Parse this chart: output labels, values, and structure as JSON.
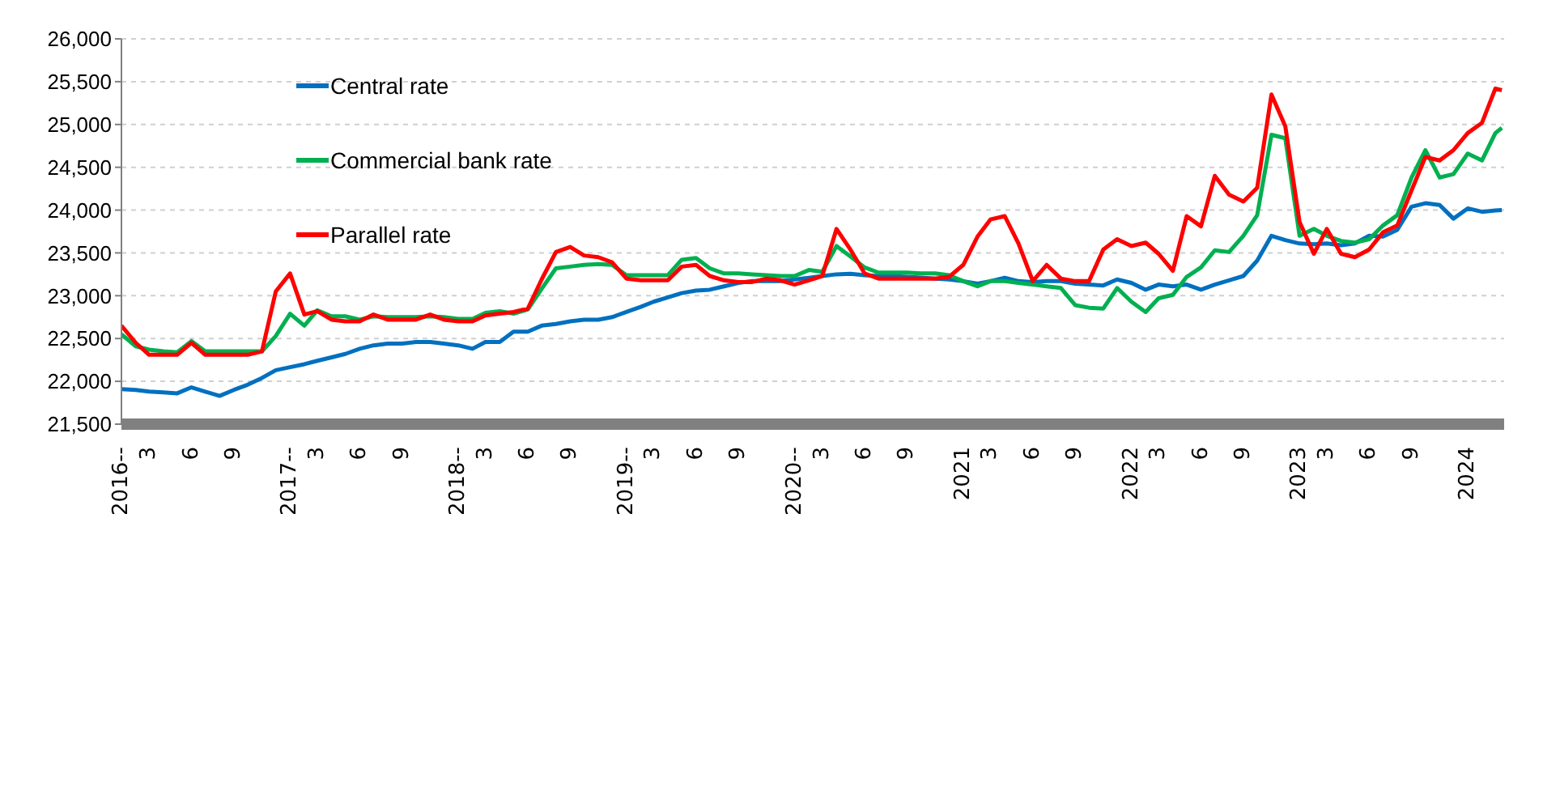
{
  "chart_data": {
    "type": "line",
    "x": [
      "2016-01-01",
      "2016-02-01",
      "2016-03-01",
      "2016-04-01",
      "2016-05-01",
      "2016-06-01",
      "2016-07-01",
      "2016-08-01",
      "2016-09-01",
      "2016-10-01",
      "2016-11-01",
      "2016-12-01",
      "2017-01-01",
      "2017-02-01",
      "2017-03-01",
      "2017-04-01",
      "2017-05-01",
      "2017-06-01",
      "2017-07-01",
      "2017-08-01",
      "2017-09-01",
      "2017-10-01",
      "2017-11-01",
      "2017-12-01",
      "2018-01-01",
      "2018-02-01",
      "2018-03-01",
      "2018-04-01",
      "2018-05-01",
      "2018-06-01",
      "2018-07-01",
      "2018-08-01",
      "2018-09-01",
      "2018-10-01",
      "2018-11-01",
      "2018-12-01",
      "2019-01-01",
      "2019-02-01",
      "2019-03-01",
      "2019-04-01",
      "2019-05-01",
      "2019-06-01",
      "2019-07-01",
      "2019-08-01",
      "2019-09-01",
      "2019-10-01",
      "2019-11-01",
      "2019-12-01",
      "2020-01-01",
      "2020-02-01",
      "2020-03-01",
      "2020-04-01",
      "2020-05-01",
      "2020-06-01",
      "2020-07-01",
      "2020-08-01",
      "2020-09-01",
      "2020-10-01",
      "2020-11-01",
      "2020-12-01",
      "2021-01-01",
      "2021-02-01",
      "2021-03-01",
      "2021-04-01",
      "2021-05-01",
      "2021-06-01",
      "2021-07-01",
      "2021-08-01",
      "2021-09-01",
      "2021-10-01",
      "2021-11-01",
      "2021-12-01",
      "2022-01-01",
      "2022-02-01",
      "2022-03-01",
      "2022-04-01",
      "2022-05-01",
      "2022-06-01",
      "2022-07-01",
      "2022-08-01",
      "2022-09-01",
      "2022-10-01",
      "2022-11-01",
      "2022-12-01",
      "2023-01-01",
      "2023-02-01",
      "2023-03-01",
      "2023-04-01",
      "2023-05-01",
      "2023-06-01",
      "2023-07-01",
      "2023-08-01",
      "2023-09-01",
      "2023-10-01",
      "2023-11-01",
      "2023-12-01",
      "2024-01-01",
      "2024-02-01",
      "2024-03-01",
      "2024-03-15"
    ],
    "series": [
      {
        "name": "Central rate",
        "color": "#0070c0",
        "values": [
          21910,
          21900,
          21880,
          21870,
          21860,
          21930,
          21880,
          21830,
          21900,
          21960,
          22040,
          22130,
          22165,
          22200,
          22240,
          22280,
          22320,
          22380,
          22420,
          22440,
          22440,
          22460,
          22460,
          22440,
          22420,
          22380,
          22460,
          22460,
          22580,
          22580,
          22650,
          22670,
          22700,
          22720,
          22720,
          22750,
          22810,
          22870,
          22930,
          22980,
          23030,
          23060,
          23070,
          23110,
          23150,
          23170,
          23170,
          23170,
          23190,
          23210,
          23230,
          23250,
          23255,
          23240,
          23230,
          23230,
          23220,
          23210,
          23200,
          23190,
          23170,
          23140,
          23170,
          23210,
          23170,
          23160,
          23170,
          23170,
          23140,
          23130,
          23120,
          23190,
          23150,
          23070,
          23130,
          23110,
          23130,
          23070,
          23130,
          23180,
          23230,
          23410,
          23700,
          23650,
          23610,
          23600,
          23610,
          23590,
          23610,
          23700,
          23690,
          23770,
          24040,
          24080,
          24060,
          23900,
          24020,
          23980,
          23995,
          24000
        ]
      },
      {
        "name": "Commercial bank rate",
        "color": "#00b050",
        "values": [
          22550,
          22410,
          22370,
          22350,
          22340,
          22470,
          22350,
          22350,
          22350,
          22350,
          22350,
          22530,
          22790,
          22650,
          22830,
          22760,
          22760,
          22720,
          22760,
          22750,
          22750,
          22750,
          22760,
          22750,
          22730,
          22730,
          22800,
          22820,
          22790,
          22840,
          23080,
          23320,
          23340,
          23360,
          23370,
          23360,
          23240,
          23240,
          23240,
          23240,
          23420,
          23440,
          23320,
          23260,
          23260,
          23250,
          23240,
          23230,
          23230,
          23300,
          23280,
          23580,
          23460,
          23330,
          23270,
          23270,
          23270,
          23260,
          23260,
          23240,
          23170,
          23110,
          23170,
          23170,
          23150,
          23130,
          23110,
          23090,
          22890,
          22860,
          22850,
          23090,
          22930,
          22810,
          22970,
          23010,
          23220,
          23330,
          23530,
          23510,
          23700,
          23940,
          24880,
          24840,
          23700,
          23780,
          23700,
          23640,
          23620,
          23660,
          23820,
          23940,
          24380,
          24700,
          24380,
          24420,
          24660,
          24580,
          24900,
          24960
        ]
      },
      {
        "name": "Parallel rate",
        "color": "#ff0000",
        "values": [
          22650,
          22450,
          22310,
          22310,
          22310,
          22450,
          22310,
          22310,
          22310,
          22310,
          22350,
          23050,
          23260,
          22780,
          22820,
          22720,
          22700,
          22700,
          22780,
          22720,
          22720,
          22720,
          22780,
          22720,
          22700,
          22700,
          22770,
          22790,
          22810,
          22850,
          23190,
          23510,
          23570,
          23470,
          23450,
          23390,
          23200,
          23180,
          23180,
          23180,
          23340,
          23360,
          23230,
          23180,
          23160,
          23160,
          23200,
          23180,
          23130,
          23180,
          23230,
          23780,
          23540,
          23260,
          23200,
          23200,
          23200,
          23200,
          23200,
          23220,
          23360,
          23690,
          23890,
          23930,
          23610,
          23170,
          23360,
          23200,
          23170,
          23170,
          23540,
          23660,
          23580,
          23620,
          23490,
          23290,
          23930,
          23810,
          24400,
          24180,
          24100,
          24260,
          25350,
          24980,
          23860,
          23490,
          23780,
          23490,
          23450,
          23540,
          23740,
          23820,
          24230,
          24620,
          24580,
          24700,
          24900,
          25020,
          25420,
          25400
        ]
      }
    ],
    "xlim": [
      "2016-01-01",
      "2024-03-20"
    ],
    "xticks": [
      {
        "value": "2016-01",
        "label": "2016--"
      },
      {
        "value": "2016-03",
        "label": "3"
      },
      {
        "value": "2016-06",
        "label": "6"
      },
      {
        "value": "2016-09",
        "label": "9"
      },
      {
        "value": "2017-01",
        "label": "2017--"
      },
      {
        "value": "2017-03",
        "label": "3"
      },
      {
        "value": "2017-06",
        "label": "6"
      },
      {
        "value": "2017-09",
        "label": "9"
      },
      {
        "value": "2018-01",
        "label": "2018--"
      },
      {
        "value": "2018-03",
        "label": "3"
      },
      {
        "value": "2018-06",
        "label": "6"
      },
      {
        "value": "2018-09",
        "label": "9"
      },
      {
        "value": "2019-01",
        "label": "2019--"
      },
      {
        "value": "2019-03",
        "label": "3"
      },
      {
        "value": "2019-06",
        "label": "6"
      },
      {
        "value": "2019-09",
        "label": "9"
      },
      {
        "value": "2020-01",
        "label": "2020--"
      },
      {
        "value": "2020-03",
        "label": "3"
      },
      {
        "value": "2020-06",
        "label": "6"
      },
      {
        "value": "2020-09",
        "label": "9"
      },
      {
        "value": "2021-01",
        "label": "2021"
      },
      {
        "value": "2021-03",
        "label": "3"
      },
      {
        "value": "2021-06",
        "label": "6"
      },
      {
        "value": "2021-09",
        "label": "9"
      },
      {
        "value": "2022-01",
        "label": "2022"
      },
      {
        "value": "2022-03",
        "label": "3"
      },
      {
        "value": "2022-06",
        "label": "6"
      },
      {
        "value": "2022-09",
        "label": "9"
      },
      {
        "value": "2023-01",
        "label": "2023"
      },
      {
        "value": "2023-03",
        "label": "3"
      },
      {
        "value": "2023-06",
        "label": "6"
      },
      {
        "value": "2023-09",
        "label": "9"
      },
      {
        "value": "2024-01",
        "label": "2024"
      }
    ],
    "ylim": [
      21500,
      26000
    ],
    "yticks": [
      {
        "value": 21500,
        "label": "21,500"
      },
      {
        "value": 22000,
        "label": "22,000"
      },
      {
        "value": 22500,
        "label": "22,500"
      },
      {
        "value": 23000,
        "label": "23,000"
      },
      {
        "value": 23500,
        "label": "23,500"
      },
      {
        "value": 24000,
        "label": "24,000"
      },
      {
        "value": 24500,
        "label": "24,500"
      },
      {
        "value": 25000,
        "label": "25,000"
      },
      {
        "value": 25500,
        "label": "25,500"
      },
      {
        "value": 26000,
        "label": "26,000"
      }
    ],
    "grid": "y",
    "legend": "top left",
    "marker": "none",
    "line_style": "solid"
  }
}
